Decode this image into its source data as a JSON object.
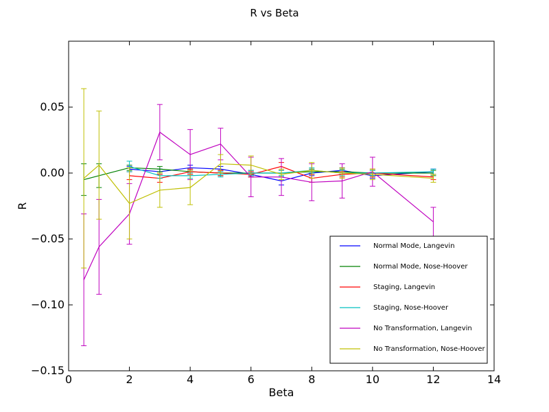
{
  "chart_data": {
    "type": "line",
    "title": "R vs Beta",
    "xlabel": "Beta",
    "ylabel": "R",
    "xlim": [
      0,
      14
    ],
    "ylim": [
      -0.15,
      0.1
    ],
    "x_ticks": [
      "0",
      "2",
      "4",
      "6",
      "8",
      "10",
      "12",
      "14"
    ],
    "y_ticks": [
      "0.05",
      "0.00",
      "−0.05",
      "−0.10",
      "−0.15"
    ],
    "x_tick_values": [
      0,
      2,
      4,
      6,
      8,
      10,
      12,
      14
    ],
    "y_tick_values": [
      0.05,
      0.0,
      -0.05,
      -0.1,
      -0.15
    ],
    "grid": false,
    "legend_position": "lower-right",
    "series": [
      {
        "name": "Normal Mode, Langevin",
        "color": "#0000ff",
        "x": [
          2,
          3,
          4,
          5,
          6,
          7,
          8,
          9,
          10,
          12
        ],
        "y": [
          0.003,
          0.001,
          0.004,
          0.003,
          -0.001,
          -0.006,
          0.0,
          0.002,
          -0.002,
          0.001
        ],
        "err": [
          0.002,
          0.002,
          0.002,
          0.002,
          0.002,
          0.003,
          0.002,
          0.002,
          0.002,
          0.002
        ]
      },
      {
        "name": "Normal Mode, Nose-Hoover",
        "color": "#008000",
        "x": [
          0.5,
          1,
          2,
          3,
          4,
          5,
          6,
          7,
          8,
          9,
          10,
          12
        ],
        "y": [
          -0.005,
          -0.002,
          0.004,
          0.003,
          0.001,
          0.0,
          0.0,
          0.0,
          0.001,
          0.001,
          0.0,
          0.0
        ],
        "err": [
          0.012,
          0.009,
          0.002,
          0.002,
          0.002,
          0.002,
          0.002,
          0.002,
          0.002,
          0.002,
          0.002,
          0.002
        ]
      },
      {
        "name": "Staging, Langevin",
        "color": "#ff0000",
        "x": [
          2,
          3,
          4,
          5,
          6,
          7,
          8,
          9,
          10,
          12
        ],
        "y": [
          -0.002,
          -0.004,
          0.001,
          0.0,
          -0.001,
          0.005,
          -0.004,
          -0.001,
          0.0,
          -0.003
        ],
        "err": [
          0.003,
          0.003,
          0.002,
          0.002,
          0.002,
          0.003,
          0.003,
          0.002,
          0.003,
          0.002
        ]
      },
      {
        "name": "Staging, Nose-Hoover",
        "color": "#00bfbf",
        "x": [
          2,
          3,
          4,
          5,
          6,
          7,
          8,
          9,
          10,
          12
        ],
        "y": [
          0.005,
          -0.002,
          -0.002,
          -0.001,
          0.0,
          0.0,
          0.002,
          0.0,
          0.0,
          0.001
        ],
        "err": [
          0.004,
          0.002,
          0.002,
          0.002,
          0.002,
          0.002,
          0.002,
          0.002,
          0.002,
          0.002
        ]
      },
      {
        "name": "No Transformation, Langevin",
        "color": "#bf00bf",
        "x": [
          0.5,
          1,
          2,
          3,
          4,
          5,
          6,
          7,
          8,
          9,
          10,
          12
        ],
        "y": [
          -0.081,
          -0.056,
          -0.031,
          0.031,
          0.014,
          0.022,
          -0.003,
          -0.003,
          -0.007,
          -0.006,
          0.001,
          -0.037
        ],
        "err": [
          0.05,
          0.036,
          0.023,
          0.021,
          0.019,
          0.012,
          0.015,
          0.014,
          0.014,
          0.013,
          0.011,
          0.011
        ]
      },
      {
        "name": "No Transformation, Nose-Hoover",
        "color": "#bfbf00",
        "x": [
          0.5,
          1,
          2,
          3,
          4,
          5,
          6,
          7,
          8,
          9,
          10,
          12
        ],
        "y": [
          -0.004,
          0.006,
          -0.023,
          -0.013,
          -0.011,
          0.007,
          0.006,
          -0.001,
          0.002,
          0.0,
          -0.001,
          -0.004
        ],
        "err": [
          0.068,
          0.041,
          0.027,
          0.013,
          0.013,
          0.007,
          0.007,
          0.004,
          0.006,
          0.004,
          0.004,
          0.003
        ]
      }
    ]
  }
}
